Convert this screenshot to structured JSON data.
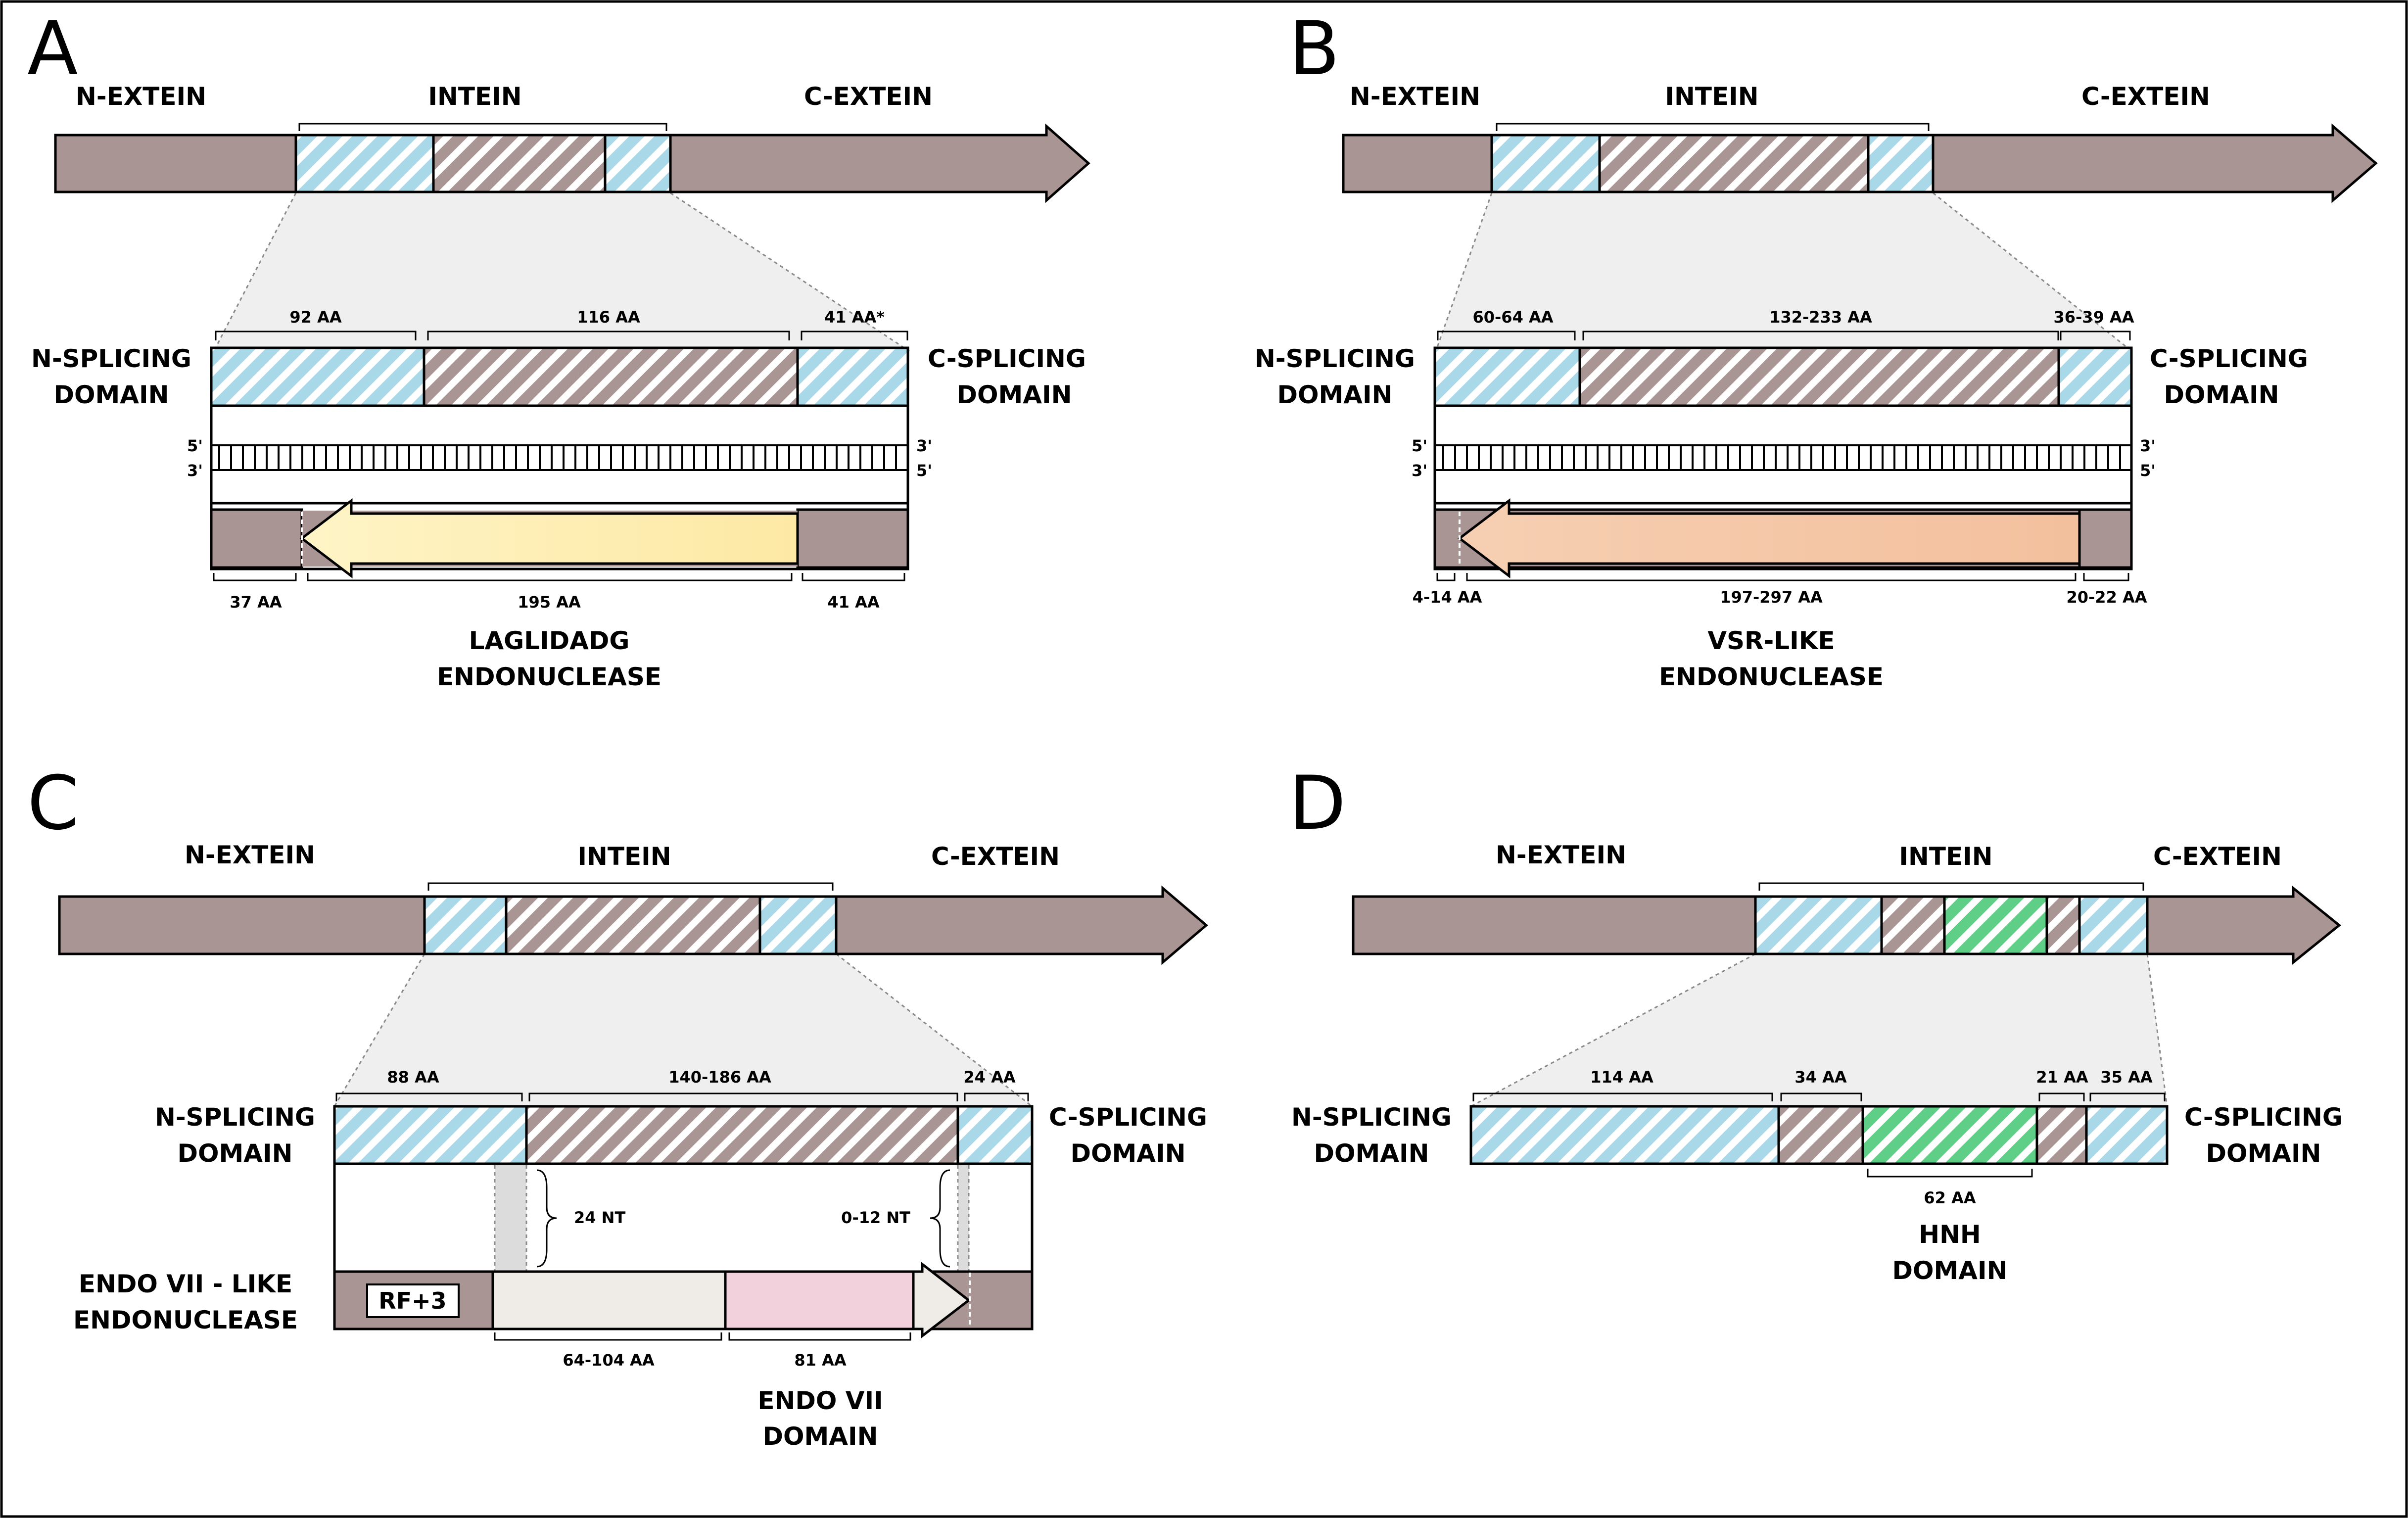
{
  "colors": {
    "extein": "#a89594",
    "splicing": "#a9d8e8",
    "intein_core": "#a89594",
    "laglidadg": "#fde9a4",
    "vsr": "#f4c2a0",
    "endo_linker": "#efebe6",
    "endo_domain": "#f2d1dc",
    "hnh": "#5fce86"
  },
  "panels": [
    {
      "letter": "A",
      "n_extein": "N-EXTEIN",
      "intein": "INTEIN",
      "c_extein": "C-EXTEIN",
      "n_splicing": [
        "N-SPLICING",
        "DOMAIN"
      ],
      "c_splicing": [
        "C-SPLICING",
        "DOMAIN"
      ],
      "sizes": [
        "92 AA",
        "116 AA",
        "41 AA*"
      ],
      "strand_top": [
        "5'",
        "3'"
      ],
      "strand_bottom": [
        "3'",
        "5'"
      ],
      "orf_sizes": [
        "37 AA",
        "195 AA",
        "41 AA"
      ],
      "endonuclease": [
        "LAGLIDADG",
        "ENDONUCLEASE"
      ]
    },
    {
      "letter": "B",
      "n_extein": "N-EXTEIN",
      "intein": "INTEIN",
      "c_extein": "C-EXTEIN",
      "n_splicing": [
        "N-SPLICING",
        "DOMAIN"
      ],
      "c_splicing": [
        "C-SPLICING",
        "DOMAIN"
      ],
      "sizes": [
        "60-64 AA",
        "132-233 AA",
        "36-39 AA"
      ],
      "strand_top": [
        "5'",
        "3'"
      ],
      "strand_bottom": [
        "3'",
        "5'"
      ],
      "orf_sizes": [
        "4-14 AA",
        "197-297 AA",
        "20-22 AA"
      ],
      "endonuclease": [
        "VSR-LIKE",
        "ENDONUCLEASE"
      ]
    },
    {
      "letter": "C",
      "n_extein": "N-EXTEIN",
      "intein": "INTEIN",
      "c_extein": "C-EXTEIN",
      "n_splicing": [
        "N-SPLICING",
        "DOMAIN"
      ],
      "c_splicing": [
        "C-SPLICING",
        "DOMAIN"
      ],
      "sizes": [
        "88 AA",
        "140-186 AA",
        "24 AA"
      ],
      "gaps": [
        "24 NT",
        "0-12 NT"
      ],
      "endonuclease": [
        "ENDO VII - LIKE",
        "ENDONUCLEASE"
      ],
      "frame": "RF+3",
      "orf_sizes": [
        "64-104 AA",
        "81 AA"
      ],
      "domain": [
        "ENDO VII",
        "DOMAIN"
      ]
    },
    {
      "letter": "D",
      "n_extein": "N-EXTEIN",
      "intein": "INTEIN",
      "c_extein": "C-EXTEIN",
      "n_splicing": [
        "N-SPLICING",
        "DOMAIN"
      ],
      "c_splicing": [
        "C-SPLICING",
        "DOMAIN"
      ],
      "sizes": [
        "114 AA",
        "34 AA",
        "21 AA",
        "35 AA"
      ],
      "hnh_size": "62 AA",
      "domain": [
        "HNH",
        "DOMAIN"
      ]
    }
  ]
}
